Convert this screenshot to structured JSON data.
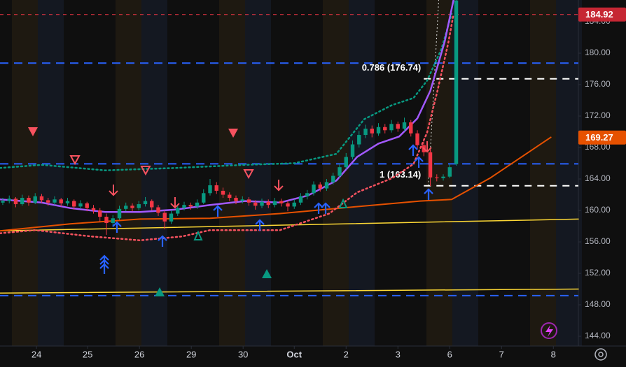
{
  "chart_data": {
    "type": "candlestick",
    "xlim": [
      -0.43,
      88.86
    ],
    "ylim": [
      142.76,
      186.76
    ],
    "xticks": [
      {
        "value": 5.2,
        "label": "24"
      },
      {
        "value": 13.1,
        "label": "25"
      },
      {
        "value": 21.1,
        "label": "26"
      },
      {
        "value": 29.1,
        "label": "29"
      },
      {
        "value": 37.1,
        "label": "30"
      },
      {
        "value": 45,
        "label": "Oct"
      },
      {
        "value": 53,
        "label": "2"
      },
      {
        "value": 61,
        "label": "3"
      },
      {
        "value": 69,
        "label": "6"
      },
      {
        "value": 77,
        "label": "7"
      },
      {
        "value": 85,
        "label": "8"
      }
    ],
    "yticks": [
      {
        "value": 144,
        "label": "144.00"
      },
      {
        "value": 148,
        "label": "148.00"
      },
      {
        "value": 152,
        "label": "152.00"
      },
      {
        "value": 156,
        "label": "156.00"
      },
      {
        "value": 160,
        "label": "160.00"
      },
      {
        "value": 164,
        "label": "164.00"
      },
      {
        "value": 168,
        "label": "168.00"
      },
      {
        "value": 172,
        "label": "172.00"
      },
      {
        "value": 176,
        "label": "176.00"
      },
      {
        "value": 180,
        "label": "180.00"
      },
      {
        "value": 184,
        "label": "184.00"
      }
    ],
    "up_color": "#089981",
    "down_color": "#f23645",
    "ohlc": [
      [
        161.0,
        161.6,
        160.7,
        161.2
      ],
      [
        161.2,
        161.9,
        160.9,
        161.5
      ],
      [
        161.5,
        161.7,
        160.4,
        160.8
      ],
      [
        160.8,
        162.0,
        160.6,
        161.6
      ],
      [
        161.6,
        161.9,
        160.6,
        161.0
      ],
      [
        161.0,
        162.2,
        160.8,
        161.8
      ],
      [
        161.8,
        162.1,
        161.0,
        161.3
      ],
      [
        161.3,
        161.6,
        160.6,
        161.0
      ],
      [
        161.0,
        161.8,
        160.7,
        161.4
      ],
      [
        161.4,
        161.6,
        160.5,
        160.9
      ],
      [
        160.9,
        161.6,
        160.6,
        161.2
      ],
      [
        161.2,
        161.4,
        160.1,
        160.5
      ],
      [
        160.5,
        161.3,
        160.2,
        160.9
      ],
      [
        160.9,
        161.1,
        159.9,
        160.3
      ],
      [
        160.3,
        160.7,
        159.6,
        160.0
      ],
      [
        160.0,
        160.3,
        158.6,
        159.2
      ],
      [
        159.2,
        159.6,
        156.9,
        158.4
      ],
      [
        158.4,
        159.4,
        158.0,
        159.0
      ],
      [
        159.0,
        160.6,
        158.8,
        160.2
      ],
      [
        160.2,
        161.0,
        159.9,
        160.6
      ],
      [
        160.6,
        160.9,
        159.9,
        160.3
      ],
      [
        160.3,
        161.2,
        160.0,
        160.8
      ],
      [
        160.8,
        161.7,
        160.5,
        161.2
      ],
      [
        161.2,
        161.4,
        160.0,
        160.4
      ],
      [
        160.4,
        160.7,
        159.3,
        159.7
      ],
      [
        159.7,
        160.0,
        157.6,
        158.6
      ],
      [
        158.6,
        160.0,
        158.3,
        159.6
      ],
      [
        159.6,
        160.7,
        159.3,
        160.3
      ],
      [
        160.3,
        161.1,
        160.0,
        160.7
      ],
      [
        160.7,
        161.0,
        160.1,
        160.5
      ],
      [
        160.5,
        161.4,
        160.2,
        161.0
      ],
      [
        161.0,
        162.7,
        160.8,
        162.2
      ],
      [
        162.2,
        164.0,
        161.9,
        163.2
      ],
      [
        163.2,
        163.6,
        162.1,
        162.5
      ],
      [
        162.5,
        162.9,
        161.6,
        162.0
      ],
      [
        162.0,
        162.3,
        161.2,
        161.6
      ],
      [
        161.6,
        161.9,
        160.8,
        161.2
      ],
      [
        161.2,
        161.8,
        160.9,
        161.4
      ],
      [
        161.4,
        161.7,
        160.6,
        161.0
      ],
      [
        161.0,
        161.3,
        160.1,
        160.6
      ],
      [
        160.6,
        161.5,
        160.3,
        161.1
      ],
      [
        161.1,
        161.4,
        160.3,
        160.7
      ],
      [
        160.7,
        161.6,
        160.4,
        161.2
      ],
      [
        161.2,
        161.5,
        160.5,
        160.9
      ],
      [
        160.9,
        161.2,
        159.9,
        160.5
      ],
      [
        160.5,
        161.4,
        160.2,
        161.0
      ],
      [
        161.0,
        162.2,
        160.7,
        161.8
      ],
      [
        161.8,
        162.6,
        161.4,
        162.2
      ],
      [
        162.2,
        163.7,
        161.9,
        163.3
      ],
      [
        163.3,
        163.6,
        162.4,
        162.8
      ],
      [
        162.8,
        164.0,
        162.5,
        163.6
      ],
      [
        163.6,
        164.8,
        163.3,
        164.4
      ],
      [
        164.4,
        165.9,
        164.1,
        165.5
      ],
      [
        165.5,
        167.3,
        165.2,
        166.8
      ],
      [
        166.8,
        168.9,
        166.5,
        168.4
      ],
      [
        168.4,
        170.1,
        168.0,
        169.6
      ],
      [
        169.6,
        170.9,
        169.2,
        170.4
      ],
      [
        170.4,
        170.8,
        169.3,
        169.8
      ],
      [
        169.8,
        171.1,
        169.5,
        170.6
      ],
      [
        170.6,
        171.0,
        169.8,
        170.2
      ],
      [
        170.2,
        171.5,
        169.9,
        171.0
      ],
      [
        171.0,
        171.3,
        170.0,
        170.4
      ],
      [
        170.4,
        171.8,
        170.1,
        171.2
      ],
      [
        171.2,
        171.5,
        169.4,
        169.8
      ],
      [
        169.8,
        170.2,
        167.8,
        168.3
      ],
      [
        168.3,
        168.8,
        166.9,
        167.4
      ],
      [
        167.4,
        167.8,
        163.1,
        164.2
      ],
      [
        164.2,
        164.6,
        163.7,
        164.1
      ],
      [
        164.1,
        164.6,
        163.8,
        164.3
      ],
      [
        164.3,
        165.9,
        164.1,
        165.5
      ],
      [
        165.9,
        186.8,
        165.7,
        186.7
      ]
    ],
    "lines": [
      {
        "color": "#fdd835",
        "width": 1.5,
        "dash": "none",
        "x": [
          -0.43,
          88.86
        ],
        "values": [
          157.4,
          158.9
        ]
      },
      {
        "color": "#fdd835",
        "width": 1.5,
        "dash": "none",
        "x": [
          -0.43,
          88.86
        ],
        "values": [
          149.5,
          150.0
        ]
      },
      {
        "color": "#e65100",
        "width": 2,
        "dash": "none",
        "x": [
          -0.43,
          10.4,
          21.2,
          32,
          42.8,
          53.6,
          64.4,
          69.3,
          75.2,
          84.6
        ],
        "values": [
          157.4,
          158.3,
          158.9,
          159.0,
          159.6,
          160.4,
          161.2,
          161.4,
          164.1,
          169.3
        ]
      },
      {
        "color": "#089981",
        "width": 2.5,
        "dash": "2 4",
        "x": [
          -0.43,
          6,
          15.8,
          26.6,
          37.4,
          45,
          51.5,
          55.8,
          60.1,
          63.4,
          65.5,
          67.7,
          69.3
        ],
        "values": [
          165.4,
          165.8,
          165.1,
          165.4,
          165.8,
          166.0,
          167.2,
          171.6,
          173.4,
          174.3,
          176.5,
          180.5,
          185.0
        ]
      },
      {
        "color": "#f7525f",
        "width": 2.5,
        "dash": "2 4",
        "x": [
          -0.43,
          5,
          13.6,
          21.2,
          27.7,
          32,
          42.8,
          46.1,
          50.4,
          54.7,
          60.1,
          63.4,
          65.5,
          67.1,
          68.8,
          69.6
        ],
        "values": [
          157.1,
          157.5,
          156.7,
          156.2,
          156.7,
          157.5,
          157.5,
          158.4,
          159.6,
          162.3,
          164.1,
          165.9,
          169.9,
          175.2,
          181.4,
          185.0
        ]
      },
      {
        "color": "#a259ff",
        "width": 2.5,
        "dash": "none",
        "x": [
          -0.43,
          6,
          10.4,
          15.8,
          21.2,
          26.6,
          32,
          37.4,
          42.8,
          47.1,
          51.5,
          54.7,
          58,
          61.2,
          64,
          66,
          68.2,
          69.6
        ],
        "values": [
          161.4,
          161.0,
          160.3,
          159.8,
          159.8,
          160.1,
          160.7,
          161.2,
          161.0,
          161.9,
          163.8,
          166.8,
          168.5,
          169.4,
          171.7,
          175.2,
          181.4,
          186.8
        ]
      }
    ],
    "levels": [
      {
        "value": 184.92,
        "color": "#f23645",
        "width": 1,
        "dash": "5 5"
      },
      {
        "value": 178.74,
        "color": "#2962ff",
        "width": 2,
        "dash": "12 8"
      },
      {
        "value": 165.93,
        "color": "#2962ff",
        "width": 2,
        "dash": "12 8"
      },
      {
        "value": 149.17,
        "color": "#2962ff",
        "width": 2,
        "dash": "12 8"
      }
    ],
    "fib_levels": [
      {
        "value": 176.74,
        "label": "0.786 (176.74)"
      },
      {
        "value": 163.14,
        "label": "1 (163.14)"
      }
    ],
    "price_tags": [
      {
        "value": 184.92,
        "color": "#c62733"
      },
      {
        "value": 169.27,
        "color": "#e65100"
      }
    ],
    "markers": [
      {
        "kind": "sell-triangle",
        "x": 4.65,
        "y": 170.05
      },
      {
        "kind": "sell-triangle",
        "x": 35.57,
        "y": 169.87
      },
      {
        "kind": "sell-triangle-hollow",
        "x": 11.14,
        "y": 166.49
      },
      {
        "kind": "sell-triangle-hollow",
        "x": 22.05,
        "y": 165.16
      },
      {
        "kind": "sell-triangle-hollow",
        "x": 37.95,
        "y": 164.72
      },
      {
        "kind": "sell-arrow",
        "x": 17.08,
        "y": 162.58
      },
      {
        "kind": "sell-arrow",
        "x": 26.59,
        "y": 160.98
      },
      {
        "kind": "sell-arrow",
        "x": 42.59,
        "y": 163.2
      },
      {
        "kind": "sell-arrow",
        "x": 65.51,
        "y": 168.09
      },
      {
        "kind": "buy-arrow",
        "x": 17.62,
        "y": 157.87
      },
      {
        "kind": "buy-arrow",
        "x": 24.65,
        "y": 156.09
      },
      {
        "kind": "buy-arrow",
        "x": 33.19,
        "y": 159.92
      },
      {
        "kind": "buy-arrow",
        "x": 39.68,
        "y": 158.14
      },
      {
        "kind": "buy-arrow",
        "x": 48.76,
        "y": 160.27
      },
      {
        "kind": "buy-arrow",
        "x": 49.84,
        "y": 160.27
      },
      {
        "kind": "buy-arrow",
        "x": 63.35,
        "y": 167.65
      },
      {
        "kind": "buy-arrow",
        "x": 64.22,
        "y": 166.14
      },
      {
        "kind": "buy-arrow",
        "x": 65.73,
        "y": 162.05
      },
      {
        "kind": "buy-triple",
        "x": 15.68,
        "y": 153.16
      },
      {
        "kind": "buy-triangle",
        "x": 24.22,
        "y": 149.6
      },
      {
        "kind": "buy-triangle",
        "x": 40.76,
        "y": 151.92
      },
      {
        "kind": "buy-triangle-hollow",
        "x": 30.16,
        "y": 156.72
      },
      {
        "kind": "buy-triangle-hollow",
        "x": 52.54,
        "y": 160.8
      }
    ]
  }
}
